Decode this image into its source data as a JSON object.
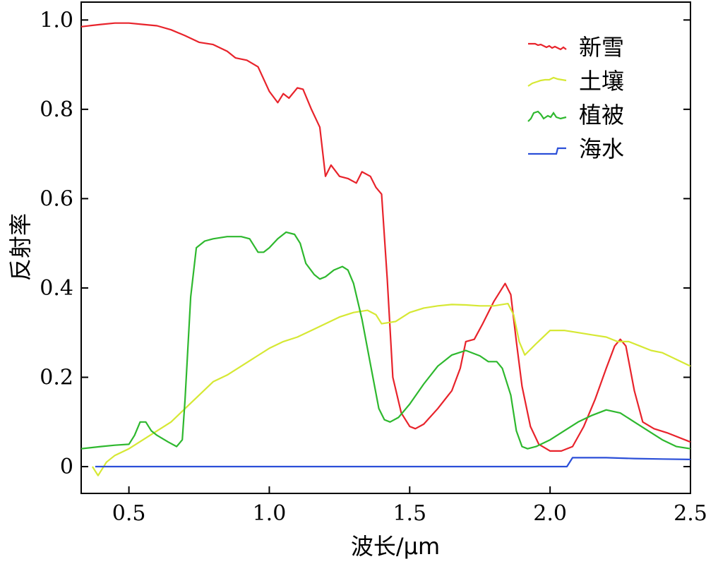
{
  "chart_data": {
    "type": "line",
    "title": "",
    "xlabel": "波长/μm",
    "ylabel": "反射率",
    "xlim": [
      0.33,
      2.5
    ],
    "ylim": [
      -0.06,
      1.04
    ],
    "x_ticks": [
      {
        "value": 0.5,
        "label": "0.5"
      },
      {
        "value": 1.0,
        "label": "1.0"
      },
      {
        "value": 1.5,
        "label": "1.5"
      },
      {
        "value": 2.0,
        "label": "2.0"
      },
      {
        "value": 2.5,
        "label": "2.5"
      }
    ],
    "y_ticks": [
      {
        "value": 0,
        "label": "0"
      },
      {
        "value": 0.2,
        "label": "0.2"
      },
      {
        "value": 0.4,
        "label": "0.4"
      },
      {
        "value": 0.6,
        "label": "0.6"
      },
      {
        "value": 0.8,
        "label": "0.8"
      },
      {
        "value": 1.0,
        "label": "1.0"
      }
    ],
    "grid": false,
    "legend_position": "top-right",
    "series": [
      {
        "name": "新雪",
        "color": "#e8232b",
        "points": [
          [
            0.33,
            0.985
          ],
          [
            0.4,
            0.99
          ],
          [
            0.45,
            0.993
          ],
          [
            0.5,
            0.993
          ],
          [
            0.55,
            0.99
          ],
          [
            0.6,
            0.987
          ],
          [
            0.65,
            0.978
          ],
          [
            0.7,
            0.965
          ],
          [
            0.75,
            0.95
          ],
          [
            0.8,
            0.945
          ],
          [
            0.85,
            0.93
          ],
          [
            0.88,
            0.915
          ],
          [
            0.92,
            0.91
          ],
          [
            0.96,
            0.895
          ],
          [
            1.0,
            0.84
          ],
          [
            1.03,
            0.815
          ],
          [
            1.05,
            0.835
          ],
          [
            1.07,
            0.825
          ],
          [
            1.1,
            0.848
          ],
          [
            1.12,
            0.845
          ],
          [
            1.15,
            0.8
          ],
          [
            1.18,
            0.76
          ],
          [
            1.2,
            0.65
          ],
          [
            1.22,
            0.675
          ],
          [
            1.25,
            0.65
          ],
          [
            1.28,
            0.645
          ],
          [
            1.31,
            0.635
          ],
          [
            1.33,
            0.66
          ],
          [
            1.36,
            0.65
          ],
          [
            1.38,
            0.625
          ],
          [
            1.4,
            0.61
          ],
          [
            1.42,
            0.42
          ],
          [
            1.44,
            0.2
          ],
          [
            1.47,
            0.12
          ],
          [
            1.5,
            0.09
          ],
          [
            1.52,
            0.085
          ],
          [
            1.55,
            0.095
          ],
          [
            1.6,
            0.13
          ],
          [
            1.65,
            0.17
          ],
          [
            1.68,
            0.22
          ],
          [
            1.7,
            0.28
          ],
          [
            1.73,
            0.285
          ],
          [
            1.76,
            0.32
          ],
          [
            1.8,
            0.37
          ],
          [
            1.84,
            0.41
          ],
          [
            1.86,
            0.385
          ],
          [
            1.88,
            0.28
          ],
          [
            1.9,
            0.18
          ],
          [
            1.93,
            0.09
          ],
          [
            1.96,
            0.05
          ],
          [
            2.0,
            0.035
          ],
          [
            2.04,
            0.035
          ],
          [
            2.08,
            0.045
          ],
          [
            2.12,
            0.09
          ],
          [
            2.16,
            0.15
          ],
          [
            2.2,
            0.22
          ],
          [
            2.23,
            0.27
          ],
          [
            2.25,
            0.285
          ],
          [
            2.27,
            0.27
          ],
          [
            2.3,
            0.17
          ],
          [
            2.33,
            0.1
          ],
          [
            2.37,
            0.085
          ],
          [
            2.42,
            0.075
          ],
          [
            2.5,
            0.055
          ]
        ]
      },
      {
        "name": "土壤",
        "color": "#d6e834",
        "points": [
          [
            0.37,
            0.0
          ],
          [
            0.39,
            -0.02
          ],
          [
            0.42,
            0.01
          ],
          [
            0.45,
            0.025
          ],
          [
            0.5,
            0.04
          ],
          [
            0.55,
            0.06
          ],
          [
            0.6,
            0.08
          ],
          [
            0.65,
            0.1
          ],
          [
            0.7,
            0.13
          ],
          [
            0.75,
            0.16
          ],
          [
            0.8,
            0.19
          ],
          [
            0.85,
            0.205
          ],
          [
            0.9,
            0.225
          ],
          [
            0.95,
            0.245
          ],
          [
            1.0,
            0.265
          ],
          [
            1.05,
            0.28
          ],
          [
            1.1,
            0.29
          ],
          [
            1.15,
            0.305
          ],
          [
            1.2,
            0.32
          ],
          [
            1.25,
            0.335
          ],
          [
            1.3,
            0.345
          ],
          [
            1.35,
            0.35
          ],
          [
            1.38,
            0.34
          ],
          [
            1.4,
            0.32
          ],
          [
            1.45,
            0.325
          ],
          [
            1.5,
            0.345
          ],
          [
            1.55,
            0.355
          ],
          [
            1.6,
            0.36
          ],
          [
            1.65,
            0.363
          ],
          [
            1.7,
            0.362
          ],
          [
            1.75,
            0.36
          ],
          [
            1.8,
            0.36
          ],
          [
            1.85,
            0.365
          ],
          [
            1.87,
            0.34
          ],
          [
            1.89,
            0.28
          ],
          [
            1.91,
            0.25
          ],
          [
            1.95,
            0.275
          ],
          [
            2.0,
            0.305
          ],
          [
            2.05,
            0.305
          ],
          [
            2.1,
            0.3
          ],
          [
            2.15,
            0.295
          ],
          [
            2.2,
            0.29
          ],
          [
            2.24,
            0.28
          ],
          [
            2.28,
            0.28
          ],
          [
            2.32,
            0.27
          ],
          [
            2.36,
            0.26
          ],
          [
            2.4,
            0.255
          ],
          [
            2.45,
            0.24
          ],
          [
            2.5,
            0.225
          ]
        ]
      },
      {
        "name": "植被",
        "color": "#2eb82e",
        "points": [
          [
            0.33,
            0.04
          ],
          [
            0.4,
            0.045
          ],
          [
            0.45,
            0.048
          ],
          [
            0.5,
            0.05
          ],
          [
            0.52,
            0.07
          ],
          [
            0.54,
            0.1
          ],
          [
            0.56,
            0.1
          ],
          [
            0.58,
            0.08
          ],
          [
            0.6,
            0.07
          ],
          [
            0.64,
            0.055
          ],
          [
            0.67,
            0.045
          ],
          [
            0.69,
            0.06
          ],
          [
            0.7,
            0.15
          ],
          [
            0.72,
            0.38
          ],
          [
            0.74,
            0.49
          ],
          [
            0.77,
            0.505
          ],
          [
            0.8,
            0.51
          ],
          [
            0.85,
            0.515
          ],
          [
            0.9,
            0.515
          ],
          [
            0.93,
            0.51
          ],
          [
            0.96,
            0.48
          ],
          [
            0.98,
            0.48
          ],
          [
            1.0,
            0.49
          ],
          [
            1.03,
            0.51
          ],
          [
            1.06,
            0.525
          ],
          [
            1.09,
            0.52
          ],
          [
            1.11,
            0.5
          ],
          [
            1.13,
            0.455
          ],
          [
            1.16,
            0.43
          ],
          [
            1.18,
            0.42
          ],
          [
            1.2,
            0.425
          ],
          [
            1.23,
            0.44
          ],
          [
            1.26,
            0.448
          ],
          [
            1.28,
            0.44
          ],
          [
            1.3,
            0.41
          ],
          [
            1.33,
            0.33
          ],
          [
            1.36,
            0.23
          ],
          [
            1.39,
            0.13
          ],
          [
            1.41,
            0.105
          ],
          [
            1.43,
            0.1
          ],
          [
            1.46,
            0.11
          ],
          [
            1.5,
            0.14
          ],
          [
            1.55,
            0.185
          ],
          [
            1.6,
            0.225
          ],
          [
            1.65,
            0.25
          ],
          [
            1.7,
            0.26
          ],
          [
            1.75,
            0.248
          ],
          [
            1.78,
            0.235
          ],
          [
            1.81,
            0.235
          ],
          [
            1.83,
            0.22
          ],
          [
            1.86,
            0.16
          ],
          [
            1.88,
            0.08
          ],
          [
            1.9,
            0.045
          ],
          [
            1.92,
            0.04
          ],
          [
            1.95,
            0.045
          ],
          [
            2.0,
            0.06
          ],
          [
            2.05,
            0.08
          ],
          [
            2.1,
            0.1
          ],
          [
            2.15,
            0.115
          ],
          [
            2.2,
            0.127
          ],
          [
            2.25,
            0.12
          ],
          [
            2.3,
            0.1
          ],
          [
            2.35,
            0.08
          ],
          [
            2.4,
            0.06
          ],
          [
            2.45,
            0.045
          ],
          [
            2.5,
            0.04
          ]
        ]
      },
      {
        "name": "海水",
        "color": "#2b4fd8",
        "points": [
          [
            0.38,
            0.0
          ],
          [
            0.8,
            0.0
          ],
          [
            1.2,
            0.0
          ],
          [
            1.6,
            0.0
          ],
          [
            2.0,
            0.0
          ],
          [
            2.06,
            0.0
          ],
          [
            2.08,
            0.02
          ],
          [
            2.2,
            0.02
          ],
          [
            2.3,
            0.018
          ],
          [
            2.4,
            0.017
          ],
          [
            2.5,
            0.016
          ]
        ]
      }
    ]
  }
}
